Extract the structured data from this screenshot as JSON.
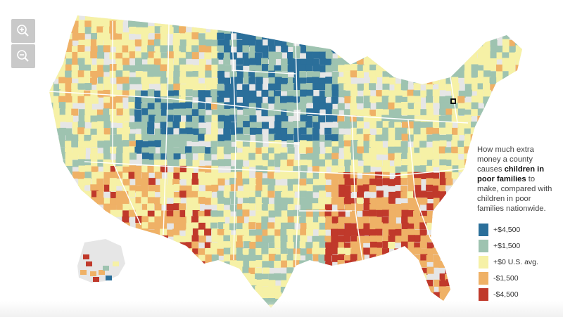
{
  "controls": {
    "zoom_in_icon": "plus-magnifier-icon",
    "zoom_out_icon": "minus-magnifier-icon"
  },
  "caption": {
    "pre": "How much extra money a county causes ",
    "bold1": "children in poor families",
    "post": " to make, compared with children in poor families nationwide."
  },
  "legend": [
    {
      "label": "+$4,500",
      "color": "#2b6f9a"
    },
    {
      "label": "+$1,500",
      "color": "#9ec3b0"
    },
    {
      "label": "+$0 U.S. avg.",
      "color": "#f6f1a6"
    },
    {
      "label": "-$1,500",
      "color": "#efb166"
    },
    {
      "label": "-$4,500",
      "color": "#c0392b"
    }
  ],
  "map": {
    "no_data_color": "#e6e6e6",
    "state_border_color": "#ffffff",
    "highlight_color": "#000000"
  }
}
